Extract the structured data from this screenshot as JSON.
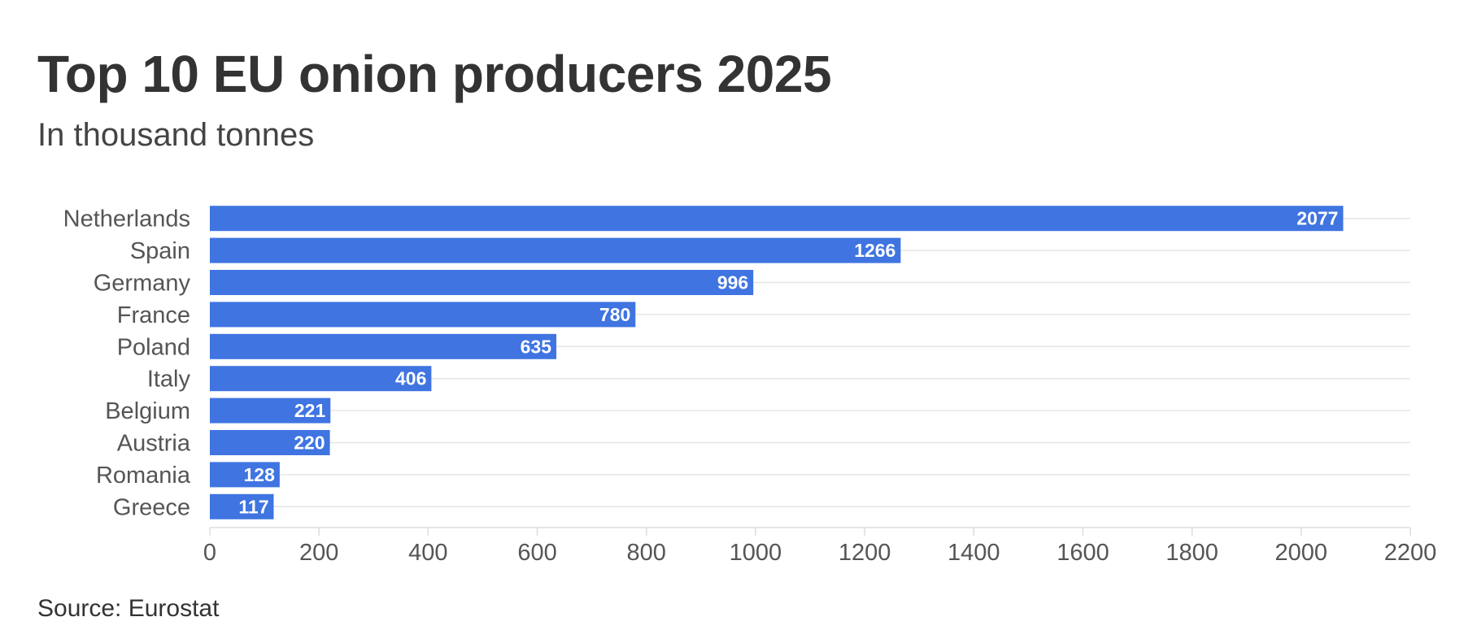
{
  "chart_data": {
    "type": "bar",
    "orientation": "horizontal",
    "title": "Top 10 EU onion producers 2025",
    "subtitle": "In thousand tonnes",
    "categories": [
      "Netherlands",
      "Spain",
      "Germany",
      "France",
      "Poland",
      "Italy",
      "Belgium",
      "Austria",
      "Romania",
      "Greece"
    ],
    "values": [
      2077,
      1266,
      996,
      780,
      635,
      406,
      221,
      220,
      128,
      117
    ],
    "xlim": [
      0,
      2200
    ],
    "x_ticks": [
      0,
      200,
      400,
      600,
      800,
      1000,
      1200,
      1400,
      1600,
      1800,
      2000,
      2200
    ],
    "grid": true,
    "data_labels": true,
    "bar_color": "#3f74e1",
    "source": "Source: Eurostat"
  }
}
